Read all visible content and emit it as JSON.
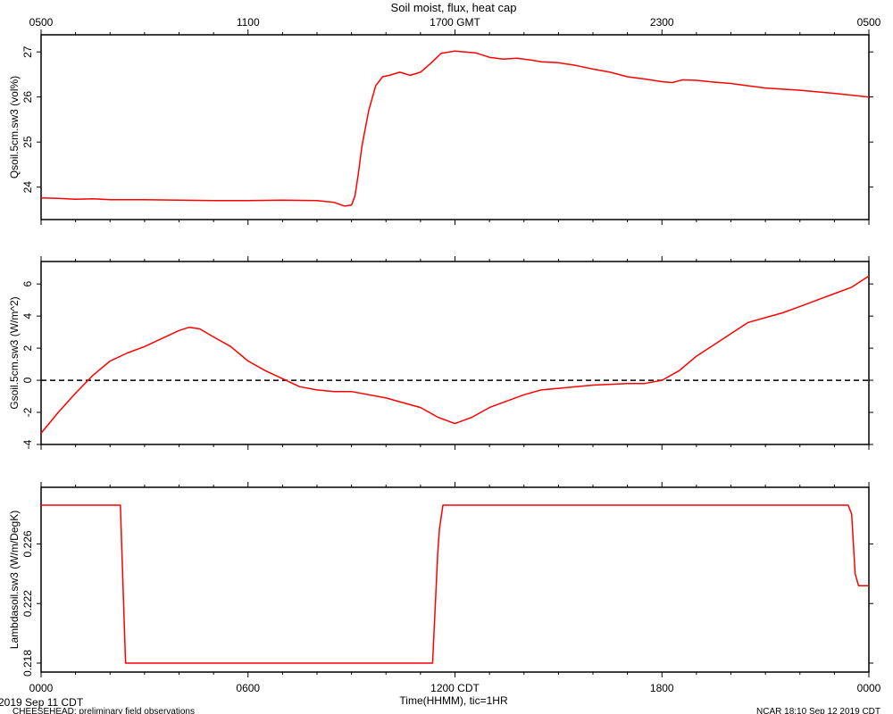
{
  "chart_data": {
    "type": "line",
    "title": "Soil moist, flux, heat cap",
    "top_axis_labels": [
      "0500",
      "1100",
      "1700 GMT",
      "2300",
      "0500"
    ],
    "bottom_axis_labels": [
      "0000",
      "0600",
      "1200 CDT",
      "1800",
      "0000"
    ],
    "xlabel": "Time(HHMM), tic=1HR",
    "xlim_hours": [
      0,
      24
    ],
    "line_color": "#ff0000",
    "footer": {
      "date": "2019 Sep 11 CDT",
      "project": "CHEESEHEAD: preliminary field observations",
      "stamp": "NCAR 18:10 Sep 12 2019 CDT"
    },
    "panels": [
      {
        "ylabel": "Qsoil.5cm.sw3 (vol%)",
        "ylim": [
          23.28,
          27.38
        ],
        "yticks": [
          "24",
          "25",
          "26",
          "27"
        ],
        "series": [
          {
            "x": [
              0,
              0.5,
              1,
              1.5,
              2,
              3,
              4,
              5,
              6,
              7,
              8,
              8.5,
              8.8,
              9.0,
              9.1,
              9.2,
              9.3,
              9.5,
              9.7,
              9.9,
              10.1,
              10.4,
              10.7,
              11.0,
              11.3,
              11.6,
              12.0,
              12.3,
              12.6,
              13.0,
              13.4,
              13.8,
              14.2,
              14.5,
              15.0,
              15.5,
              16.0,
              16.5,
              17.0,
              17.5,
              18.0,
              18.3,
              18.6,
              19.0,
              19.5,
              20.0,
              20.5,
              21.0,
              22.0,
              23.0,
              24.0
            ],
            "y": [
              23.76,
              23.75,
              23.73,
              23.74,
              23.72,
              23.72,
              23.71,
              23.7,
              23.7,
              23.71,
              23.7,
              23.66,
              23.58,
              23.6,
              23.8,
              24.3,
              24.9,
              25.7,
              26.25,
              26.45,
              26.48,
              26.55,
              26.48,
              26.55,
              26.75,
              26.97,
              27.02,
              27.0,
              26.98,
              26.88,
              26.84,
              26.86,
              26.82,
              26.78,
              26.76,
              26.7,
              26.62,
              26.55,
              26.45,
              26.4,
              26.34,
              26.32,
              26.38,
              26.37,
              26.33,
              26.3,
              26.25,
              26.2,
              26.15,
              26.08,
              26.0
            ]
          }
        ]
      },
      {
        "ylabel": "Gsoil.5cm.sw3 (W/m^2)",
        "ylim": [
          -4,
          7.4
        ],
        "yticks": [
          "-4",
          "-2",
          "0",
          "2",
          "4",
          "6"
        ],
        "zero_line": true,
        "series": [
          {
            "x": [
              0,
              0.5,
              1,
              1.5,
              2,
              2.5,
              3,
              3.5,
              4,
              4.3,
              4.6,
              5,
              5.5,
              6,
              6.5,
              7,
              7.5,
              8,
              8.5,
              9,
              10,
              11,
              11.5,
              12,
              12.5,
              13,
              13.5,
              14,
              14.5,
              15,
              16,
              17,
              17.5,
              18,
              18.5,
              19,
              19.5,
              20,
              20.5,
              21,
              21.5,
              22,
              22.5,
              23,
              23.5,
              24
            ],
            "y": [
              -3.3,
              -2.0,
              -0.8,
              0.3,
              1.2,
              1.7,
              2.1,
              2.6,
              3.1,
              3.3,
              3.2,
              2.7,
              2.1,
              1.2,
              0.6,
              0.1,
              -0.4,
              -0.6,
              -0.7,
              -0.7,
              -1.1,
              -1.7,
              -2.3,
              -2.7,
              -2.3,
              -1.7,
              -1.3,
              -0.9,
              -0.6,
              -0.5,
              -0.3,
              -0.2,
              -0.2,
              0.0,
              0.6,
              1.5,
              2.2,
              2.9,
              3.6,
              3.9,
              4.2,
              4.6,
              5.0,
              5.4,
              5.8,
              6.5
            ]
          }
        ]
      },
      {
        "ylabel": "Lambdasoil.sw3 (W/m/DegK)",
        "ylim": [
          0.2174,
          0.2298
        ],
        "yticks": [
          "0.218",
          "0.222",
          "0.226"
        ],
        "series": [
          {
            "x": [
              0,
              2.3,
              2.45,
              11.35,
              11.5,
              11.55,
              11.65,
              23.4,
              23.5,
              23.6,
              23.7,
              24.0
            ],
            "y": [
              0.2286,
              0.2286,
              0.218,
              0.218,
              0.2254,
              0.227,
              0.2286,
              0.2286,
              0.228,
              0.224,
              0.2232,
              0.2232
            ]
          }
        ]
      }
    ]
  }
}
